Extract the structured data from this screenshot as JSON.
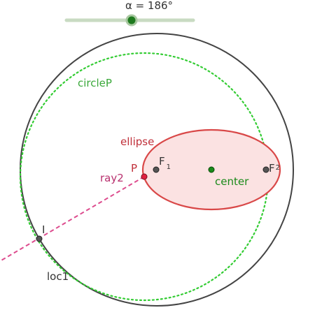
{
  "slider": {
    "label": "α = 186°",
    "value_degrees": 186,
    "min_degrees": 0,
    "max_degrees": 360
  },
  "objects": {
    "circle_label": "circleP",
    "ellipse_label": "ellipse",
    "ray_label": "ray2",
    "point_p_label": "P",
    "focus1_main": "F",
    "focus1_sub": "1",
    "focus2_main": "F",
    "focus2_sub": "2",
    "center_label": "center",
    "point_i_label": "I",
    "locus_label": "loc1"
  },
  "colors": {
    "slider_track": "#c8dbc2",
    "slider_handle": "#1e7a1e",
    "big_circle": "#444444",
    "circle_p": "#33cc33",
    "ellipse_stroke": "#d94848",
    "ellipse_fill": "#fbe2e2",
    "ray": "#dd4c8e",
    "point_gray": "#555555",
    "center_point": "#1a8a1a",
    "point_p": "#e02040",
    "label_green": "#3aa83a",
    "label_red": "#c0303a",
    "label_magenta": "#b8306e",
    "label_dark": "#333333"
  }
}
